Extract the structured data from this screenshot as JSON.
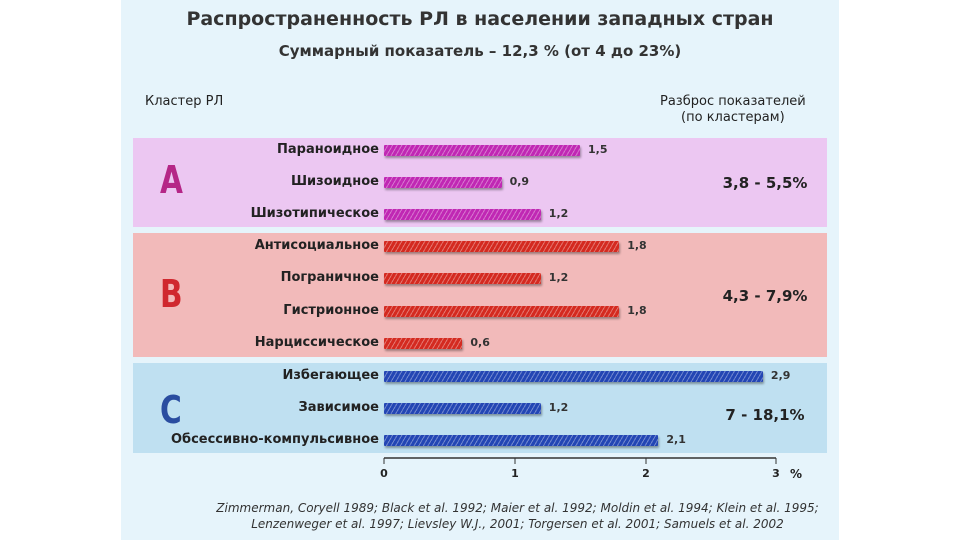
{
  "title": "Распространенность РЛ в населении западных стран",
  "subtitle": "Суммарный показатель – 12,3 % (от 4 до 23%)",
  "columns": {
    "left": "Кластер РЛ",
    "right_line1": "Разброс показателей",
    "right_line2": "(по кластерам)"
  },
  "clusters": [
    {
      "letter": "A",
      "range": "3,8 - 5,5%",
      "color": "#c028b4",
      "panel_color": "#ecc7f2",
      "letter_color": "#b52687"
    },
    {
      "letter": "B",
      "range": "4,3 - 7,9%",
      "color": "#d42a20",
      "panel_color": "#f2baba",
      "letter_color": "#d0282f"
    },
    {
      "letter": "C",
      "range": "7 - 18,1%",
      "color": "#2346b4",
      "panel_color": "#bfe0f1",
      "letter_color": "#2a4da0"
    }
  ],
  "chart_data": {
    "type": "bar",
    "orientation": "horizontal",
    "categories": [
      "Параноидное",
      "Шизоидное",
      "Шизотипическое",
      "Антисоциальное",
      "Пограничное",
      "Гистрионное",
      "Нарциссическое",
      "Избегающее",
      "Зависимое",
      "Обсессивно-компульсивное"
    ],
    "values": [
      1.5,
      0.9,
      1.2,
      1.8,
      1.2,
      1.8,
      0.6,
      2.9,
      1.2,
      2.1
    ],
    "value_labels": [
      "1,5",
      "0,9",
      "1,2",
      "1,8",
      "1,2",
      "1,8",
      "0,6",
      "2,9",
      "1,2",
      "2,1"
    ],
    "cluster": [
      0,
      0,
      0,
      1,
      1,
      1,
      1,
      2,
      2,
      2
    ],
    "xlim": [
      0,
      3
    ],
    "xticks": [
      "0",
      "1",
      "2",
      "3"
    ],
    "xunit": "%"
  },
  "references": {
    "line1": "Zimmerman, Coryell 1989; Black et al. 1992; Maier et al. 1992; Moldin et al. 1994; Klein et al. 1995;",
    "line2": "Lenzenweger et al. 1997; Lievsley W.J., 2001; Torgersen et al. 2001; Samuels et al. 2002"
  }
}
